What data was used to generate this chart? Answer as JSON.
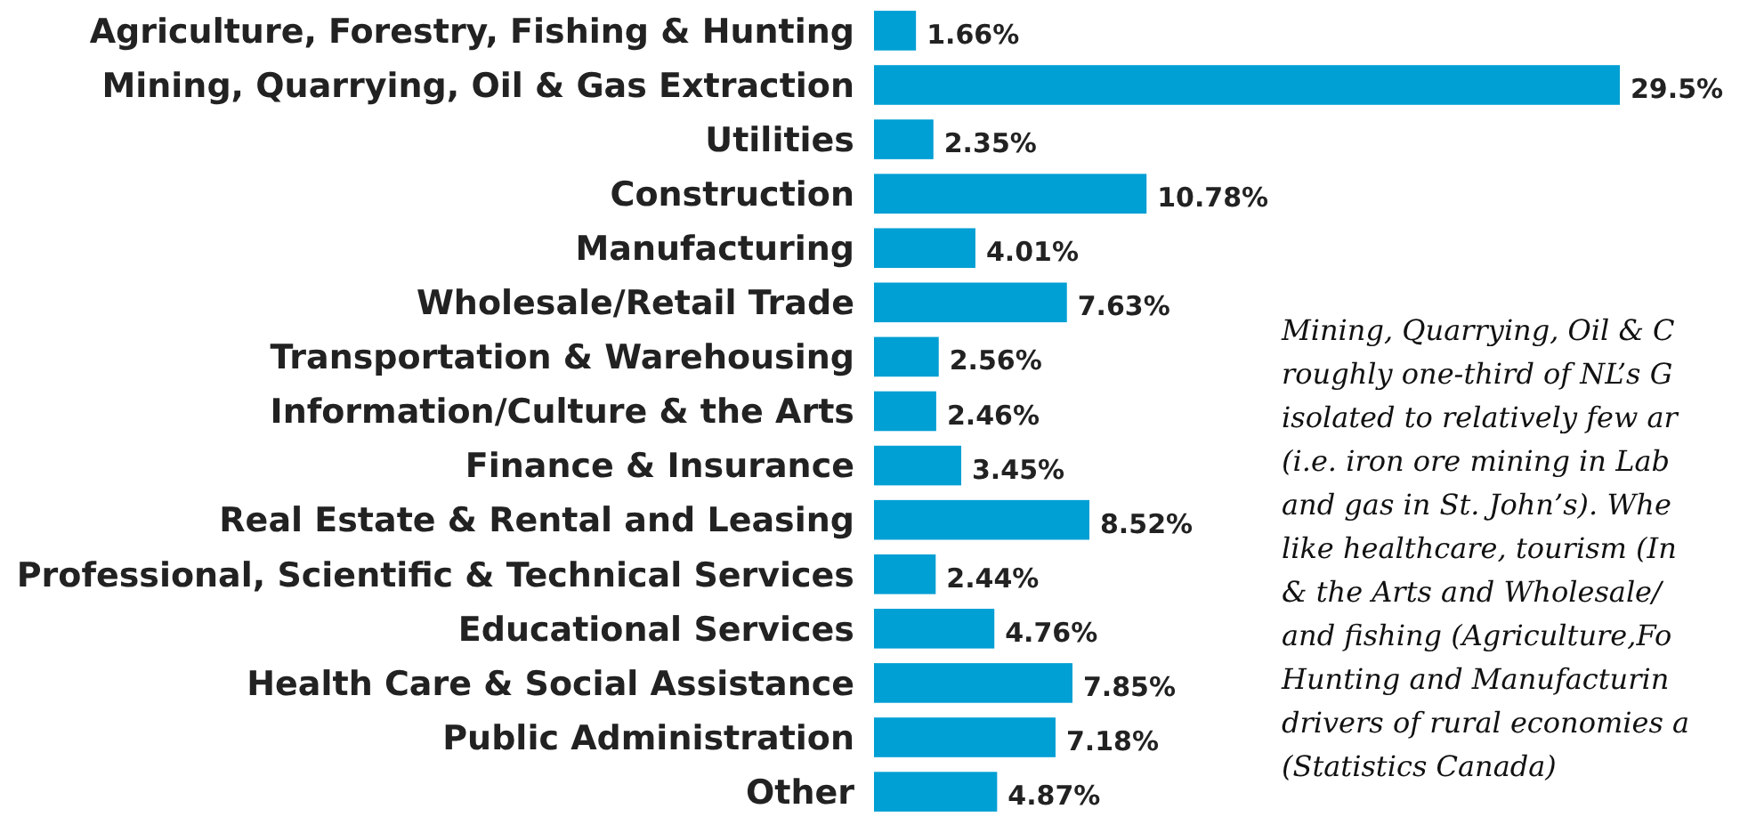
{
  "chart_data": {
    "type": "bar",
    "orientation": "horizontal",
    "categories": [
      "Agriculture, Forestry, Fishing & Hunting",
      "Mining, Quarrying, Oil & Gas Extraction",
      "Utilities",
      "Construction",
      "Manufacturing",
      "Wholesale/Retail Trade",
      "Transportation & Warehousing",
      "Information/Culture & the Arts",
      "Finance & Insurance",
      "Real Estate & Rental and Leasing",
      "Professional, Scientific & Technical Services",
      "Educational Services",
      "Health Care & Social Assistance",
      "Public Administration",
      "Other"
    ],
    "values": [
      1.66,
      29.5,
      2.35,
      10.78,
      4.01,
      7.63,
      2.56,
      2.46,
      3.45,
      8.52,
      2.44,
      4.76,
      7.85,
      7.18,
      4.87
    ],
    "value_labels": [
      "1.66%",
      "29.5%",
      "2.35%",
      "10.78%",
      "4.01%",
      "7.63%",
      "2.56%",
      "2.46%",
      "3.45%",
      "8.52%",
      "2.44%",
      "4.76%",
      "7.85%",
      "7.18%",
      "4.87%"
    ],
    "color": "#009fd4",
    "annotations": [
      "Mining, Quarrying, Oil & C",
      "roughly one-third of NL’s G",
      "isolated to relatively few ar",
      "(i.e. iron ore mining in Lab",
      "and gas in St. John’s). Whe",
      "like healthcare, tourism (In",
      "& the Arts and Wholesale/",
      "and fishing (Agriculture,Fo",
      "Hunting and Manufacturin",
      "drivers of rural economies a",
      "(Statistics Canada)"
    ]
  }
}
